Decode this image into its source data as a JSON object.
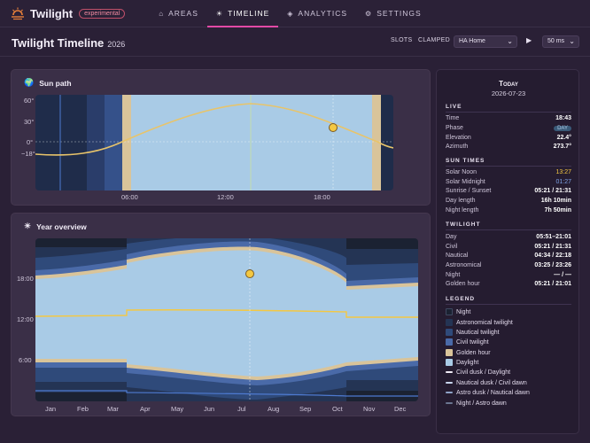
{
  "app": {
    "name": "Twilight",
    "badge": "experimental"
  },
  "nav": [
    {
      "icon": "⌂",
      "label": "AREAS",
      "active": false
    },
    {
      "icon": "☀",
      "label": "TIMELINE",
      "active": true
    },
    {
      "icon": "◈",
      "label": "ANALYTICS",
      "active": false
    },
    {
      "icon": "⚙",
      "label": "SETTINGS",
      "active": false
    }
  ],
  "header": {
    "title": "Twilight Timeline",
    "year": "2026",
    "slots": "SLOTS",
    "clamped": "CLAMPED",
    "area": "HA Home",
    "speed": "50 ms"
  },
  "sunpath": {
    "title": "Sun path",
    "yticks": [
      "60°",
      "30°",
      "0°",
      "−18°"
    ],
    "xticks": [
      "06:00",
      "12:00",
      "18:00"
    ]
  },
  "year": {
    "title": "Year overview",
    "yticks": [
      "18:00",
      "12:00",
      "6:00"
    ],
    "months": [
      "Jan",
      "Feb",
      "Mar",
      "Apr",
      "May",
      "Jun",
      "Jul",
      "Aug",
      "Sep",
      "Oct",
      "Nov",
      "Dec"
    ]
  },
  "side": {
    "heading": "Today",
    "date": "2026-07-23",
    "live_label": "LIVE",
    "live": [
      {
        "k": "Time",
        "v": "18:43"
      },
      {
        "k": "Phase",
        "v": "DAY"
      },
      {
        "k": "Elevation",
        "v": "22.4°"
      },
      {
        "k": "Azimuth",
        "v": "273.7°"
      }
    ],
    "sun_label": "SUN TIMES",
    "sun": [
      {
        "k": "Solar Noon",
        "v": "13:27"
      },
      {
        "k": "Solar Midnight",
        "v": "01:27"
      },
      {
        "k": "Sunrise / Sunset",
        "v": "05:21 / 21:31"
      },
      {
        "k": "Day length",
        "v": "16h 10min"
      },
      {
        "k": "Night length",
        "v": "7h 50min"
      }
    ],
    "tw_label": "TWILIGHT",
    "tw": [
      {
        "k": "Day",
        "v": "05:51–21:01"
      },
      {
        "k": "Civil",
        "v": "05:21 / 21:31"
      },
      {
        "k": "Nautical",
        "v": "04:34 / 22:18"
      },
      {
        "k": "Astronomical",
        "v": "03:25 / 23:26"
      },
      {
        "k": "Night",
        "v": "— / —"
      },
      {
        "k": "Golden hour",
        "v": "05:21 / 21:01"
      }
    ],
    "legend_label": "LEGEND",
    "legend": [
      {
        "label": "Night",
        "color": "#1b2232",
        "kind": "box"
      },
      {
        "label": "Astronomical twilight",
        "color": "#243454",
        "kind": "box"
      },
      {
        "label": "Nautical twilight",
        "color": "#2f4a7a",
        "kind": "box"
      },
      {
        "label": "Civil twilight",
        "color": "#4a6aa8",
        "kind": "box"
      },
      {
        "label": "Golden hour",
        "color": "#d9c49a",
        "kind": "box"
      },
      {
        "label": "Daylight",
        "color": "#a9cbe6",
        "kind": "box"
      },
      {
        "label": "Civil dusk / Daylight",
        "color": "#f1ecf7",
        "kind": "line"
      },
      {
        "label": "Nautical dusk / Civil dawn",
        "color": "#c9d6ee",
        "kind": "line"
      },
      {
        "label": "Astro dusk / Nautical dawn",
        "color": "#8fa3c8",
        "kind": "line"
      },
      {
        "label": "Night / Astro dawn",
        "color": "#6b7690",
        "kind": "line"
      }
    ]
  },
  "colors": {
    "accent": "#e24aa6",
    "sun": "#f4c842",
    "day": "#a9cbe6",
    "golden": "#d9c49a"
  }
}
